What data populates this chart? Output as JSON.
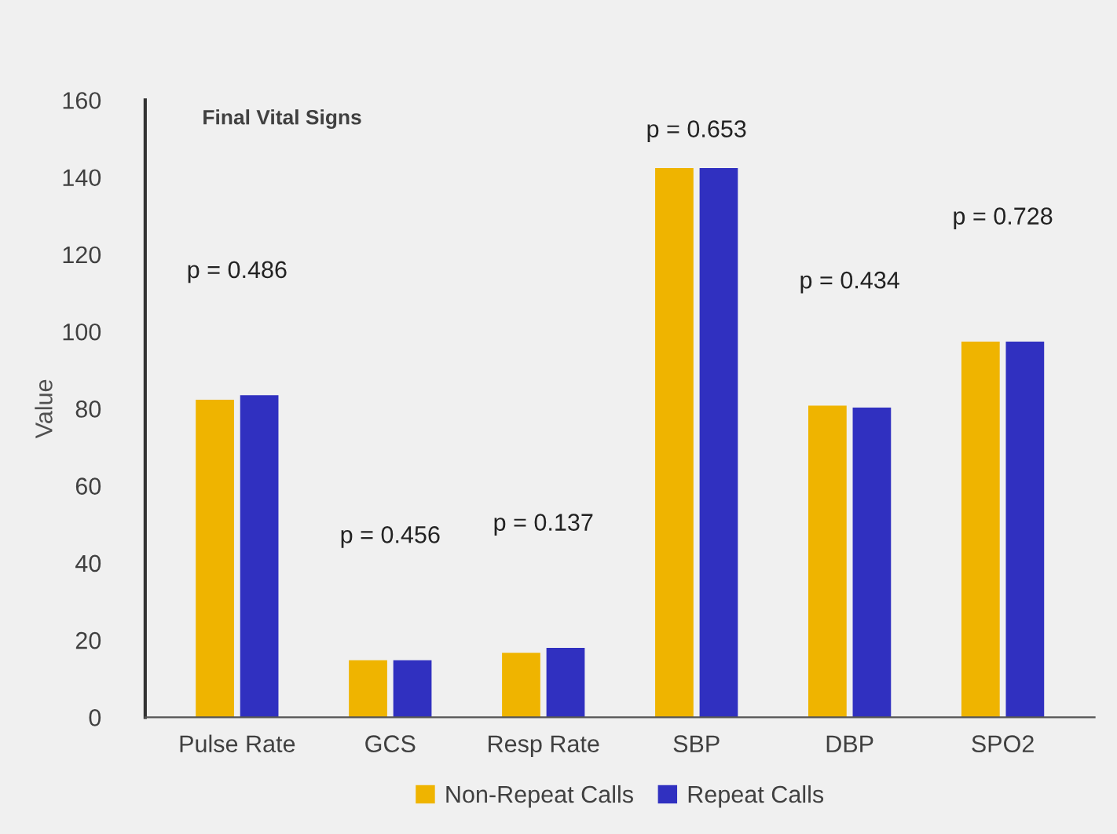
{
  "chart_data": {
    "type": "bar",
    "title": "Final Vital Signs",
    "ylabel": "Value",
    "categories": [
      "Pulse Rate",
      "GCS",
      "Resp Rate",
      "SBP",
      "DBP",
      "SPO2"
    ],
    "series": [
      {
        "name": "Non-Repeat Calls",
        "color": "#efb400",
        "values": [
          82.3,
          14.8,
          16.7,
          142.4,
          80.8,
          97.4
        ]
      },
      {
        "name": "Repeat Calls",
        "color": "#3030c0",
        "values": [
          83.5,
          14.8,
          18.0,
          142.4,
          80.3,
          97.4
        ]
      }
    ],
    "ylim": [
      0,
      160
    ],
    "yticks": [
      0,
      20,
      40,
      60,
      80,
      100,
      120,
      140,
      160
    ],
    "annotations": [
      "p = 0.486",
      "p = 0.456",
      "p = 0.137",
      "p = 0.653",
      "p = 0.434",
      "p = 0.728"
    ],
    "grid": false,
    "legend": "bottom"
  }
}
